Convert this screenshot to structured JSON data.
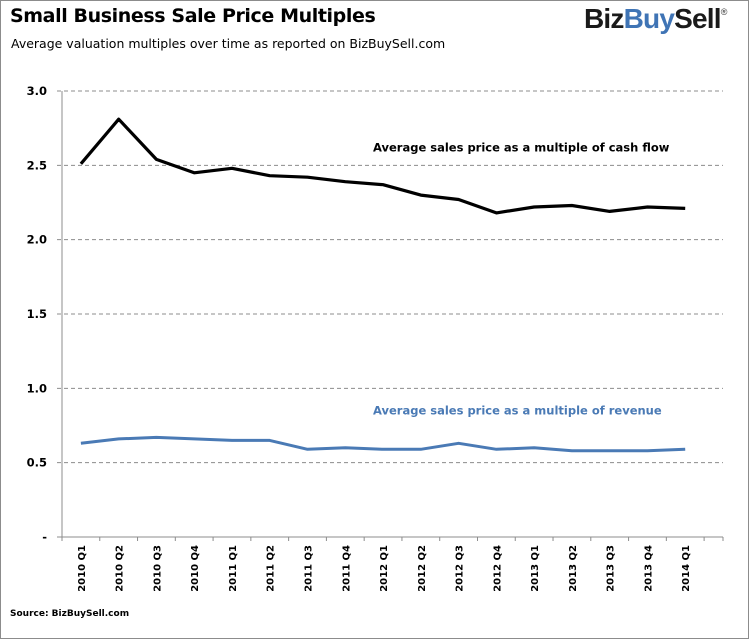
{
  "header": {
    "title": "Small Business Sale Price Multiples",
    "subtitle": "Average valuation multiples over time as reported  on BizBuySell.com",
    "logo": {
      "part1": "Biz",
      "part2": "Buy",
      "part3": "Sell",
      "reg": "®"
    }
  },
  "footer": {
    "source": "Source: BizBuySell.com"
  },
  "colors": {
    "cash_flow": "#000000",
    "revenue": "#4a7ab5",
    "grid": "#8c8c8c",
    "axis": "#8c8c8c",
    "logo_accent": "#3f74b5"
  },
  "chart_data": {
    "type": "line",
    "title": "Small Business Sale Price Multiples",
    "subtitle": "Average valuation multiples over time as reported on BizBuySell.com",
    "xlabel": "",
    "ylabel": "",
    "ylim": [
      0,
      3.0
    ],
    "yticks": [
      0,
      0.5,
      1.0,
      1.5,
      2.0,
      2.5,
      3.0
    ],
    "ytick_labels": [
      "-",
      "0.5",
      "1.0",
      "1.5",
      "2.0",
      "2.5",
      "3.0"
    ],
    "grid": "horizontal-dashed",
    "categories": [
      "2010 Q1",
      "2010 Q2",
      "2010 Q3",
      "2010 Q4",
      "2011 Q1",
      "2011 Q2",
      "2011 Q3",
      "2011 Q4",
      "2012 Q1",
      "2012 Q2",
      "2012 Q3",
      "2012 Q4",
      "2013 Q1",
      "2013 Q2",
      "2013 Q3",
      "2013 Q4",
      "2014 Q1"
    ],
    "series": [
      {
        "name": "Average sales price as a multiple of cash flow",
        "color": "#000000",
        "values": [
          2.51,
          2.81,
          2.54,
          2.45,
          2.48,
          2.43,
          2.42,
          2.39,
          2.37,
          2.3,
          2.27,
          2.18,
          2.22,
          2.23,
          2.19,
          2.22,
          2.21
        ]
      },
      {
        "name": "Average sales price as a multiple of revenue",
        "color": "#4a7ab5",
        "values": [
          0.63,
          0.66,
          0.67,
          0.66,
          0.65,
          0.65,
          0.59,
          0.6,
          0.59,
          0.59,
          0.63,
          0.59,
          0.6,
          0.58,
          0.58,
          0.58,
          0.59
        ]
      }
    ],
    "annotations": [
      {
        "text": "Average sales price as a multiple of cash flow",
        "series": 0,
        "anchor_value": 2.62
      },
      {
        "text": "Average sales price as a multiple of revenue",
        "series": 1,
        "anchor_value": 0.85
      }
    ],
    "legend": "inline-annotations"
  }
}
